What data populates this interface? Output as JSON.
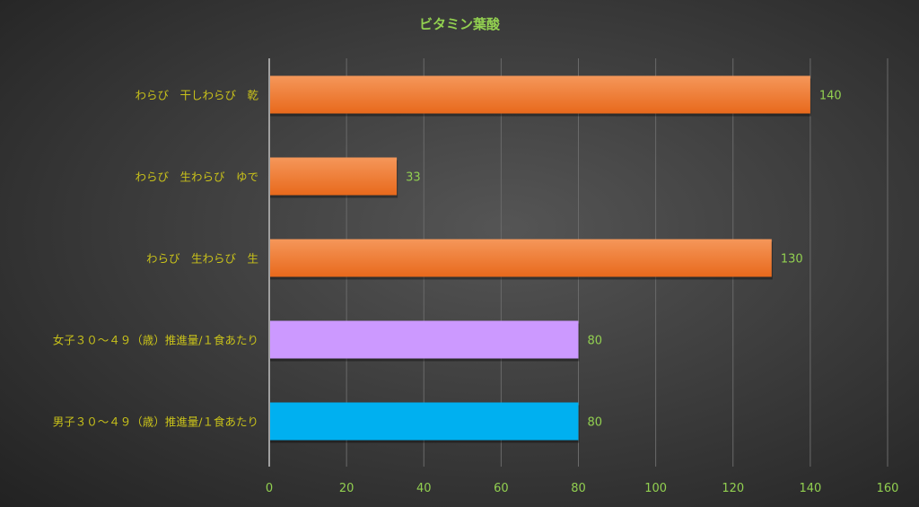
{
  "chart_data": {
    "type": "bar",
    "orientation": "horizontal",
    "title": "ビタミン葉酸",
    "categories": [
      "わらび　干しわらび　乾",
      "わらび　生わらび　ゆで",
      "わらび　生わらび　生",
      "女子３０～４９（歳）推進量/１食あたり",
      "男子３０～４９（歳）推進量/１食あたり"
    ],
    "values": [
      140,
      33,
      130,
      80,
      80
    ],
    "data_labels": [
      "140",
      "33",
      "130",
      "80",
      "80"
    ],
    "bar_colors": [
      "#f07828",
      "#f07828",
      "#f07828",
      "#cc99ff",
      "#00b0f0"
    ],
    "xlim": [
      0,
      160
    ],
    "xticks": [
      0,
      20,
      40,
      60,
      80,
      100,
      120,
      140,
      160
    ],
    "xtick_labels": [
      "0",
      "20",
      "40",
      "60",
      "80",
      "100",
      "120",
      "140",
      "160"
    ],
    "grid": true,
    "legend": "none",
    "colors": {
      "title": "#92d050",
      "category_labels": "#c9c21a",
      "value_labels": "#92d050",
      "grid": "#6a6a6a"
    }
  }
}
